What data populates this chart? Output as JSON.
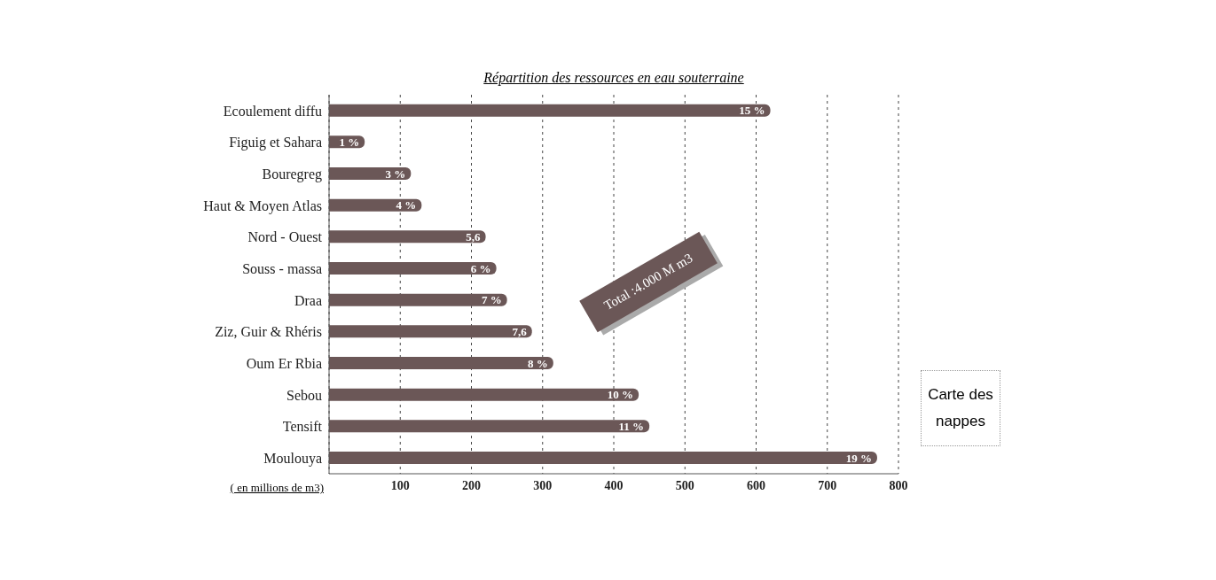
{
  "chart_data": {
    "type": "bar",
    "orientation": "horizontal",
    "title": "Répartition des ressources en eau souterraine",
    "xlabel": "( en millions de m3)",
    "categories": [
      "Ecoulement diffu",
      "Figuig et Sahara",
      "Bouregreg",
      "Haut & Moyen Atlas",
      "Nord - Ouest",
      "Souss - massa",
      "Draa",
      "Ziz, Guir & Rhéris",
      "Oum Er Rbia",
      "Sebou",
      "Tensift",
      "Moulouya"
    ],
    "values": [
      620,
      50,
      115,
      130,
      220,
      235,
      250,
      285,
      315,
      435,
      450,
      770
    ],
    "color": "#6b5757",
    "xlim": [
      0,
      800
    ],
    "xticks": [
      100,
      200,
      300,
      400,
      500,
      600,
      700,
      800
    ],
    "grid": "x",
    "legend": false,
    "annotations": [
      "Total :4.000 M m3",
      "Carte des nappes",
      {
        "text": "15 %",
        "x": 620,
        "y": "Ecoulement diffu"
      },
      {
        "text": "1 %",
        "x": 50,
        "y": "Figuig et Sahara"
      },
      {
        "text": "3 %",
        "x": 115,
        "y": "Bouregreg"
      },
      {
        "text": "4 %",
        "x": 130,
        "y": "Haut & Moyen Atlas"
      },
      {
        "text": "5,6",
        "x": 220,
        "y": "Nord - Ouest"
      },
      {
        "text": "6 %",
        "x": 235,
        "y": "Souss - massa"
      },
      {
        "text": "7 %",
        "x": 250,
        "y": "Draa"
      },
      {
        "text": "7,6",
        "x": 285,
        "y": "Ziz, Guir & Rhéris"
      },
      {
        "text": "8 %",
        "x": 315,
        "y": "Oum Er Rbia"
      },
      {
        "text": "10 %",
        "x": 435,
        "y": "Sebou"
      },
      {
        "text": "11 %",
        "x": 450,
        "y": "Tensift"
      },
      {
        "text": "19 %",
        "x": 770,
        "y": "Moulouya"
      }
    ]
  }
}
